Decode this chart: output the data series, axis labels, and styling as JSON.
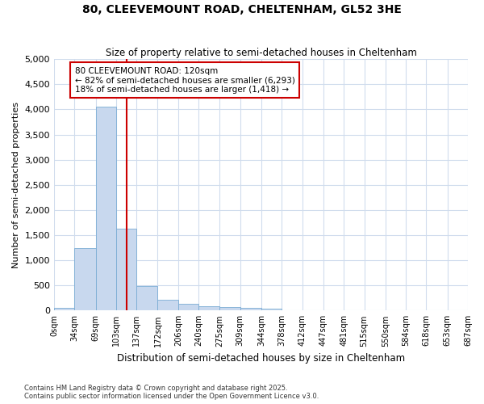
{
  "title1": "80, CLEEVEMOUNT ROAD, CHELTENHAM, GL52 3HE",
  "title2": "Size of property relative to semi-detached houses in Cheltenham",
  "xlabel": "Distribution of semi-detached houses by size in Cheltenham",
  "ylabel": "Number of semi-detached properties",
  "footnote1": "Contains HM Land Registry data © Crown copyright and database right 2025.",
  "footnote2": "Contains public sector information licensed under the Open Government Licence v3.0.",
  "annotation_line1": "80 CLEEVEMOUNT ROAD: 120sqm",
  "annotation_line2": "← 82% of semi-detached houses are smaller (6,293)",
  "annotation_line3": "18% of semi-detached houses are larger (1,418) →",
  "property_size": 120,
  "bin_edges": [
    0,
    34,
    69,
    103,
    137,
    172,
    206,
    240,
    275,
    309,
    344,
    378,
    412,
    447,
    481,
    515,
    550,
    584,
    618,
    653,
    687
  ],
  "bin_counts": [
    50,
    1250,
    4050,
    1630,
    480,
    210,
    130,
    90,
    70,
    55,
    45,
    0,
    0,
    0,
    0,
    0,
    0,
    0,
    0,
    0
  ],
  "bar_color": "#c8d8ee",
  "bar_edgecolor": "#7aacd4",
  "vline_color": "#cc0000",
  "background_color": "#ffffff",
  "grid_color": "#d0dced",
  "annotation_box_color": "#ffffff",
  "annotation_box_edgecolor": "#cc0000",
  "ylim": [
    0,
    5000
  ],
  "yticks": [
    0,
    500,
    1000,
    1500,
    2000,
    2500,
    3000,
    3500,
    4000,
    4500,
    5000
  ]
}
